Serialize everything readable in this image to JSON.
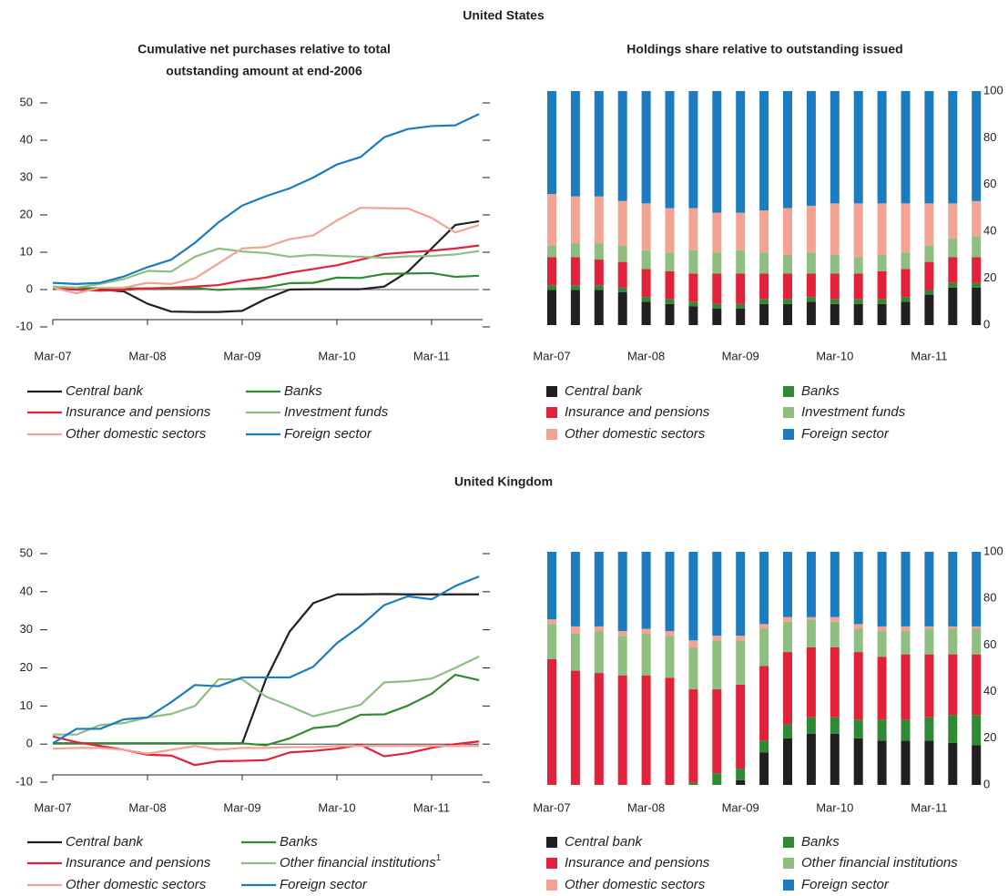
{
  "sections": [
    "United States",
    "United Kingdom"
  ],
  "chart_data": [
    {
      "type": "line",
      "title": [
        "Cumulative net purchases relative to total",
        "outstanding amount at end-2006"
      ],
      "categories": [
        "Mar-07",
        null,
        null,
        null,
        "Mar-08",
        null,
        null,
        null,
        "Mar-09",
        null,
        null,
        null,
        "Mar-10",
        null,
        null,
        null,
        "Mar-11",
        null,
        null
      ],
      "ylim": [
        -10,
        50
      ],
      "yticks": [
        -10,
        0,
        10,
        20,
        30,
        40,
        50
      ],
      "series": [
        {
          "name": "Central bank",
          "color": "#231f20",
          "values": [
            0.3,
            0,
            0,
            -0.5,
            -3.8,
            -5.9,
            -6,
            -6,
            -5.7,
            -2.5,
            0,
            0.1,
            0.1,
            0.1,
            0.8,
            4.8,
            11,
            17.3,
            18.3
          ]
        },
        {
          "name": "Banks",
          "color": "#2f8a33",
          "values": [
            0.5,
            0.3,
            0.4,
            0.3,
            0.3,
            0.2,
            0.4,
            -0.1,
            0.2,
            0.6,
            1.7,
            1.8,
            3.2,
            3.1,
            4.2,
            4.3,
            4.4,
            3.4,
            3.7
          ]
        },
        {
          "name": "Insurance and pensions",
          "color": "#e2213b",
          "values": [
            0.5,
            0,
            -0.3,
            -0.1,
            0.3,
            0.5,
            0.8,
            1.2,
            2.4,
            3.2,
            4.5,
            5.5,
            6.5,
            8,
            9.5,
            10,
            10.4,
            11,
            11.8
          ]
        },
        {
          "name": "Investment funds",
          "color": "#8fbf7f",
          "values": [
            0.8,
            0.5,
            1.5,
            2.8,
            5,
            4.8,
            8.8,
            11,
            10.2,
            9.8,
            8.8,
            9.3,
            9,
            8.8,
            8.5,
            8.9,
            9,
            9.4,
            10.3
          ]
        },
        {
          "name": "Other domestic sectors",
          "color": "#f3a392",
          "values": [
            0.5,
            -1,
            0.5,
            0.5,
            1.8,
            1.5,
            3,
            7,
            11,
            11.4,
            13.5,
            14.5,
            18.5,
            21.9,
            21.8,
            21.7,
            19.2,
            15.3,
            17.3
          ]
        },
        {
          "name": "Foreign sector",
          "color": "#1b7cc0",
          "values": [
            1.8,
            1.5,
            1.8,
            3.5,
            6,
            8,
            12.5,
            18,
            22.5,
            25,
            27.1,
            30,
            33.5,
            35.5,
            40.8,
            43,
            43.8,
            44,
            47
          ]
        }
      ]
    },
    {
      "type": "bar",
      "stacked": true,
      "yaxis": "right",
      "title": [
        "Holdings share relative to outstanding issued"
      ],
      "categories": [
        "Mar-07",
        null,
        null,
        null,
        "Mar-08",
        null,
        null,
        null,
        "Mar-09",
        null,
        null,
        null,
        "Mar-10",
        null,
        null,
        null,
        "Mar-11",
        null,
        null
      ],
      "ylim": [
        0,
        100
      ],
      "yticks": [
        0,
        20,
        40,
        60,
        80,
        100
      ],
      "series": [
        {
          "name": "Central bank",
          "color": "#231f20",
          "values": [
            15,
            15,
            15,
            14,
            10,
            9,
            8,
            7,
            7,
            9,
            9,
            10,
            9,
            9,
            9,
            10,
            13,
            16,
            16
          ]
        },
        {
          "name": "Banks",
          "color": "#2f8a33",
          "values": [
            2,
            2,
            2,
            2,
            2,
            2,
            2,
            2,
            2,
            2,
            2,
            2,
            2,
            2,
            2,
            2,
            2,
            2,
            2
          ]
        },
        {
          "name": "Insurance and pensions",
          "color": "#e2213b",
          "values": [
            12,
            12,
            11,
            11,
            12,
            12,
            12,
            13,
            13,
            11,
            11,
            10,
            11,
            11,
            12,
            12,
            12,
            11,
            11
          ]
        },
        {
          "name": "Investment funds",
          "color": "#8fbf7f",
          "values": [
            5,
            6,
            7,
            7,
            8,
            8,
            10,
            9,
            10,
            9,
            8,
            9,
            8,
            7,
            7,
            7,
            7,
            8,
            9
          ]
        },
        {
          "name": "Other domestic sectors",
          "color": "#f3a392",
          "values": [
            22,
            20,
            20,
            19,
            20,
            19,
            18,
            17,
            16,
            18,
            20,
            20,
            22,
            23,
            22,
            21,
            18,
            15,
            15
          ]
        },
        {
          "name": "Foreign sector",
          "color": "#1b7cc0",
          "values": [
            44,
            45,
            45,
            47,
            48,
            50,
            50,
            52,
            52,
            51,
            50,
            49,
            48,
            48,
            48,
            48,
            48,
            48,
            47
          ]
        }
      ]
    },
    {
      "type": "line",
      "categories": [
        "Mar-07",
        null,
        null,
        null,
        "Mar-08",
        null,
        null,
        null,
        "Mar-09",
        null,
        null,
        null,
        "Mar-10",
        null,
        null,
        null,
        "Mar-11",
        null,
        null
      ],
      "ylim": [
        -10,
        50
      ],
      "yticks": [
        -10,
        0,
        10,
        20,
        30,
        40,
        50
      ],
      "series": [
        {
          "name": "Central bank",
          "color": "#231f20",
          "values": [
            0.2,
            0.2,
            0.2,
            0.2,
            0.2,
            0.2,
            0.2,
            0.2,
            0.2,
            17,
            29.5,
            37,
            39.3,
            39.3,
            39.4,
            39.3,
            39.3,
            39.3,
            39.3
          ]
        },
        {
          "name": "Banks",
          "color": "#2f8a33",
          "values": [
            0.2,
            0.2,
            0.2,
            0.2,
            0.2,
            0.2,
            0.2,
            0.2,
            0.2,
            -0.3,
            1.5,
            4.2,
            4.8,
            7.7,
            7.8,
            10.1,
            13.2,
            18.2,
            16.8
          ]
        },
        {
          "name": "Insurance and pensions",
          "color": "#e2213b",
          "values": [
            2,
            0.5,
            -0.5,
            -1.5,
            -2.8,
            -3,
            -5.5,
            -4.5,
            -4.4,
            -4.2,
            -2.2,
            -1.8,
            -1.2,
            -0.2,
            -3.2,
            -2.4,
            -1,
            0,
            0.7
          ]
        },
        {
          "name": "Other financial institutions",
          "name_superscript": "1",
          "color": "#8fbf7f",
          "values": [
            2.5,
            2.5,
            5,
            5.5,
            7,
            7.9,
            10,
            17,
            17,
            12.5,
            10,
            7.3,
            8.8,
            10.3,
            16.2,
            16.5,
            17.2,
            20,
            23
          ]
        },
        {
          "name": "Other domestic sectors",
          "color": "#f3a392",
          "values": [
            -1.2,
            -1,
            -1,
            -1.5,
            -2.5,
            -1.5,
            -0.5,
            -1.5,
            -1,
            -1,
            -0.8,
            -0.8,
            -0.5,
            -0.5,
            -0.5,
            -0.5,
            -0.5,
            -0.5,
            -0.5
          ]
        },
        {
          "name": "Foreign sector",
          "color": "#1b7cc0",
          "values": [
            0.2,
            4,
            4,
            6.5,
            7,
            11,
            15.5,
            15.2,
            17.5,
            17.5,
            17.5,
            20.3,
            26.5,
            31,
            36.5,
            38.8,
            38,
            41.5,
            44
          ]
        }
      ]
    },
    {
      "type": "bar",
      "stacked": true,
      "yaxis": "right",
      "categories": [
        "Mar-07",
        null,
        null,
        null,
        "Mar-08",
        null,
        null,
        null,
        "Mar-09",
        null,
        null,
        null,
        "Mar-10",
        null,
        null,
        null,
        "Mar-11",
        null,
        null
      ],
      "ylim": [
        0,
        100
      ],
      "yticks": [
        0,
        20,
        40,
        60,
        80,
        100
      ],
      "series": [
        {
          "name": "Central bank",
          "color": "#231f20",
          "values": [
            0,
            0,
            0,
            0,
            0,
            0,
            0,
            0,
            2,
            14,
            20,
            22,
            22,
            20,
            19,
            19,
            19,
            18,
            17
          ]
        },
        {
          "name": "Banks",
          "color": "#2f8a33",
          "values": [
            0,
            0,
            0,
            0,
            0,
            0,
            1,
            5,
            5,
            5,
            6,
            7,
            7,
            8,
            9,
            9,
            10,
            12,
            13
          ]
        },
        {
          "name": "Insurance and pensions",
          "color": "#e2213b",
          "values": [
            54,
            49,
            48,
            47,
            47,
            46,
            40,
            36,
            36,
            32,
            31,
            30,
            30,
            29,
            27,
            28,
            27,
            26,
            26
          ]
        },
        {
          "name": "Other financial institutions",
          "color": "#8fbf7f",
          "values": [
            15,
            16,
            18,
            17,
            18,
            18,
            18,
            21,
            19,
            16,
            13,
            12,
            11,
            10,
            11,
            10,
            11,
            11,
            11
          ]
        },
        {
          "name": "Other domestic sectors",
          "color": "#f3a392",
          "values": [
            2,
            3,
            2,
            2,
            2,
            2,
            3,
            2,
            2,
            2,
            2,
            1,
            2,
            2,
            2,
            2,
            1,
            1,
            1
          ]
        },
        {
          "name": "Foreign sector",
          "color": "#1b7cc0",
          "values": [
            29,
            32,
            32,
            34,
            33,
            34,
            38,
            36,
            36,
            31,
            28,
            28,
            28,
            31,
            32,
            32,
            32,
            32,
            32
          ]
        }
      ]
    }
  ]
}
